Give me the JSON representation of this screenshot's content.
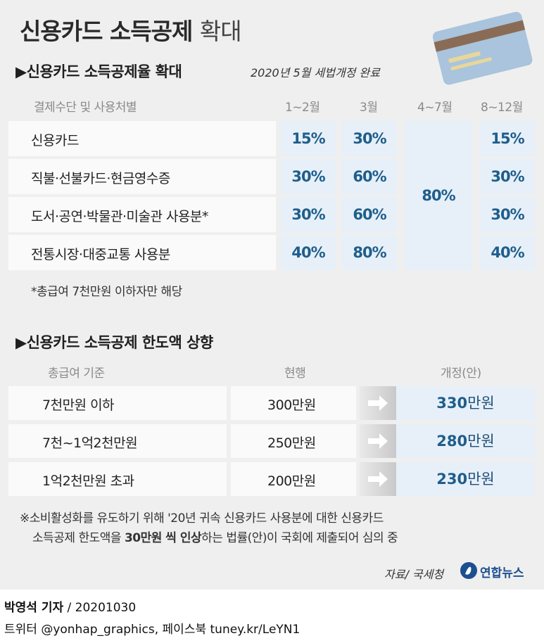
{
  "title": {
    "bold": "신용카드 소득공제",
    "light": "확대"
  },
  "section1": {
    "heading": "▶신용카드 소득공제율 확대",
    "note": "2020년 5월 세법개정 완료",
    "column_headers": [
      "결제수단 및 사용처별",
      "1~2월",
      "3월",
      "4~7월",
      "8~12월"
    ],
    "rows": [
      {
        "label": "신용카드",
        "jan_feb": "15%",
        "mar": "30%",
        "sep_dec": "15%"
      },
      {
        "label": "직불·선불카드·현금영수증",
        "jan_feb": "30%",
        "mar": "60%",
        "sep_dec": "30%"
      },
      {
        "label": "도서·공연·박물관·미술관 사용분*",
        "jan_feb": "30%",
        "mar": "60%",
        "sep_dec": "30%"
      },
      {
        "label": "전통시장·대중교통 사용분",
        "jan_feb": "40%",
        "mar": "80%",
        "sep_dec": "40%"
      }
    ],
    "apr_jul_merged": "80%",
    "footnote": "*총급여 7천만원 이하자만 해당"
  },
  "section2": {
    "heading": "▶신용카드 소득공제 한도액 상향",
    "column_headers": [
      "총급여 기준",
      "현행",
      "개정(안)"
    ],
    "rows": [
      {
        "income": "7천만원 이하",
        "current": "300만원",
        "new_num": "330",
        "new_unit": "만원"
      },
      {
        "income": "7천~1억2천만원",
        "current": "250만원",
        "new_num": "280",
        "new_unit": "만원"
      },
      {
        "income": "1억2천만원 초과",
        "current": "200만원",
        "new_num": "230",
        "new_unit": "만원"
      }
    ]
  },
  "bottom_note": {
    "line1": "※소비활성화를 유도하기 위해 '20년 귀속 신용카드 사용분에 대한 신용카드",
    "line2_before": "소득공제 한도액을 ",
    "line2_bold": "30만원 씩 인상",
    "line2_after": "하는 법률(안)이 국회에 제출되어 심의 중"
  },
  "source": "자료/ 국세청",
  "logo_text": "연합뉴스",
  "credits": {
    "reporter": "박영석 기자",
    "date": "/ 20201030",
    "social": "트위터 @yonhap_graphics, 페이스북 tuney.kr/LeYN1"
  },
  "colors": {
    "accent_blue": "#1f5e8c",
    "cell_blue_bg": "#e7f0f8",
    "panel_bg": "#efefef",
    "card_blue": "#a9c4dc",
    "card_stripe": "#8a6b55",
    "logo_blue": "#1c4f8f"
  },
  "icons": [
    "credit-card-icon",
    "arrow-right-icon",
    "yonhap-logo-icon"
  ]
}
